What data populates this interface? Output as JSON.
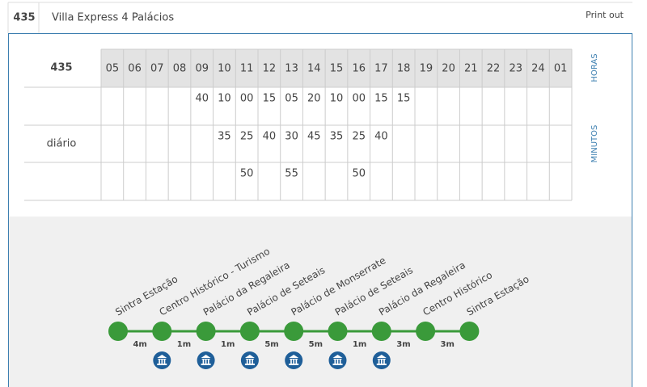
{
  "header": {
    "route": "435",
    "name": "Villa Express 4 Palácios",
    "print": "Print out"
  },
  "table": {
    "corner": "435",
    "hours_label": "HORAS",
    "minutes_label": "MINUTOS",
    "row_label": "diário",
    "hours": [
      "05",
      "06",
      "07",
      "08",
      "09",
      "10",
      "11",
      "12",
      "13",
      "14",
      "15",
      "16",
      "17",
      "18",
      "19",
      "20",
      "21",
      "22",
      "23",
      "24",
      "01"
    ],
    "minutes": [
      [
        null,
        null,
        null,
        null,
        "40",
        "10",
        "00",
        "15",
        "05",
        "20",
        "10",
        "00",
        "15",
        "15",
        null,
        null,
        null,
        null,
        null,
        null,
        null
      ],
      [
        null,
        null,
        null,
        null,
        null,
        "35",
        "25",
        "40",
        "30",
        "45",
        "35",
        "25",
        "40",
        null,
        null,
        null,
        null,
        null,
        null,
        null,
        null
      ],
      [
        null,
        null,
        null,
        null,
        null,
        null,
        "50",
        null,
        "55",
        null,
        null,
        "50",
        null,
        null,
        null,
        null,
        null,
        null,
        null,
        null,
        null
      ]
    ]
  },
  "route_map": {
    "stops": [
      {
        "name": "Sintra Estação",
        "monument": false
      },
      {
        "name": "Centro Histórico - Turismo",
        "monument": true
      },
      {
        "name": "Palácio da Regaleira",
        "monument": true
      },
      {
        "name": "Palácio de Seteais",
        "monument": true
      },
      {
        "name": "Palácio de Monserrate",
        "monument": true
      },
      {
        "name": "Palácio de Seteais",
        "monument": true
      },
      {
        "name": "Palácio da Regaleira",
        "monument": true
      },
      {
        "name": "Centro Histórico",
        "monument": false
      },
      {
        "name": "Sintra Estação",
        "monument": false
      }
    ],
    "durations": [
      "4m",
      "1m",
      "1m",
      "5m",
      "5m",
      "1m",
      "3m",
      "3m"
    ]
  }
}
